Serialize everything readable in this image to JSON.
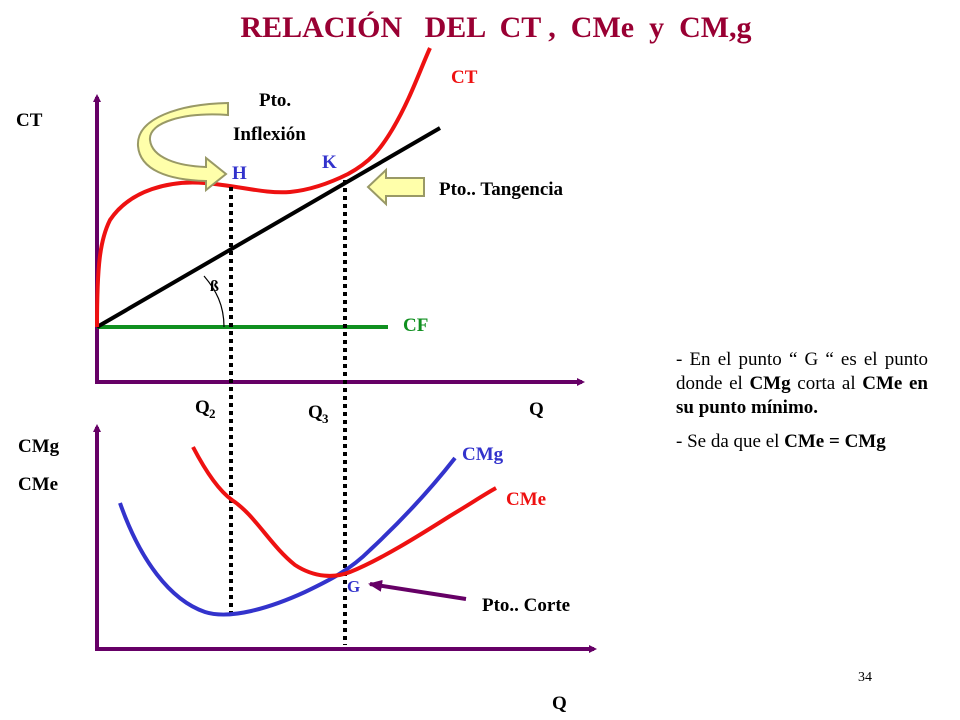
{
  "slide": {
    "title": "RELACIÓN   DEL  CT ,  CMe  y  CM,g",
    "page_number": "34"
  },
  "top_graph": {
    "y_axis_label": "CT",
    "x_axis_label": "Q",
    "ct_curve_label": "CT",
    "cf_line_label": "CF",
    "inflection_label_line1": "Pto.",
    "inflection_label_line2": "Inflexión",
    "point_h": "H",
    "point_k": "K",
    "tangency_label": "Pto.. Tangencia",
    "angle_label": "ß",
    "q2_main": "Q",
    "q2_sub": "2",
    "q3_main": "Q",
    "q3_sub": "3"
  },
  "bottom_graph": {
    "y_axis_label_1": "CMg",
    "y_axis_label_2": "CMe",
    "x_axis_label": "Q",
    "cmg_curve_label": "CMg",
    "cme_curve_label": "CMe",
    "point_g": "G",
    "cut_label": "Pto.. Corte"
  },
  "explanation": {
    "p1_a": "- En el punto “ G “ es el punto donde el ",
    "p1_b": "CMg",
    "p1_c": " corta al ",
    "p1_d": "CMe en su punto mínimo.",
    "p2_a": "- Se da que el ",
    "p2_b": "CMe = CMg"
  },
  "colors": {
    "title": "#990033",
    "axis": "#660066",
    "ct_curve": "#ee1111",
    "cme_curve": "#ee1111",
    "cmg_curve": "#3333cc",
    "cf_line": "#109020",
    "ray": "#000000",
    "blue_label": "#3333cc",
    "red_label": "#ee1111",
    "green_label": "#109020",
    "arrow_fill": "#ffffaa",
    "arrow_stroke": "#999966",
    "pointer": "#660066"
  }
}
